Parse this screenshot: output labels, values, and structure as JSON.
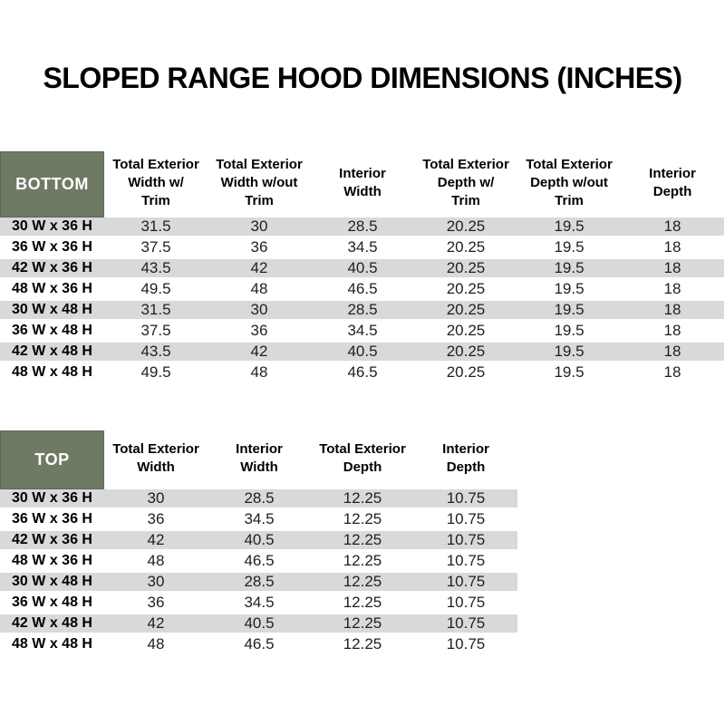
{
  "page_title": "SLOPED RANGE HOOD DIMENSIONS (INCHES)",
  "colors": {
    "header_green": "#6f7a64",
    "header_green_border": "#5d6852",
    "row_gray": "#d9d9d9",
    "row_white": "#ffffff",
    "text_black": "#000000",
    "text_dark": "#1f1f1f"
  },
  "bottom_table": {
    "corner_label": "BOTTOM",
    "columns": [
      "Total Exterior\nWidth w/\nTrim",
      "Total Exterior\nWidth w/out\nTrim",
      "Interior\nWidth",
      "Total Exterior\nDepth w/\nTrim",
      "Total Exterior\nDepth w/out\nTrim",
      "Interior\nDepth"
    ],
    "rows": [
      {
        "label": "30 W x 36 H",
        "values": [
          "31.5",
          "30",
          "28.5",
          "20.25",
          "19.5",
          "18"
        ]
      },
      {
        "label": "36 W x 36 H",
        "values": [
          "37.5",
          "36",
          "34.5",
          "20.25",
          "19.5",
          "18"
        ]
      },
      {
        "label": "42 W x 36 H",
        "values": [
          "43.5",
          "42",
          "40.5",
          "20.25",
          "19.5",
          "18"
        ]
      },
      {
        "label": "48 W x 36 H",
        "values": [
          "49.5",
          "48",
          "46.5",
          "20.25",
          "19.5",
          "18"
        ]
      },
      {
        "label": "30 W x 48 H",
        "values": [
          "31.5",
          "30",
          "28.5",
          "20.25",
          "19.5",
          "18"
        ]
      },
      {
        "label": "36 W x 48 H",
        "values": [
          "37.5",
          "36",
          "34.5",
          "20.25",
          "19.5",
          "18"
        ]
      },
      {
        "label": "42 W x 48 H",
        "values": [
          "43.5",
          "42",
          "40.5",
          "20.25",
          "19.5",
          "18"
        ]
      },
      {
        "label": "48 W x 48 H",
        "values": [
          "49.5",
          "48",
          "46.5",
          "20.25",
          "19.5",
          "18"
        ]
      }
    ]
  },
  "top_table": {
    "corner_label": "TOP",
    "columns": [
      "Total Exterior\nWidth",
      "Interior\nWidth",
      "Total Exterior\nDepth",
      "Interior\nDepth"
    ],
    "rows": [
      {
        "label": "30 W x 36 H",
        "values": [
          "30",
          "28.5",
          "12.25",
          "10.75"
        ]
      },
      {
        "label": "36 W x 36 H",
        "values": [
          "36",
          "34.5",
          "12.25",
          "10.75"
        ]
      },
      {
        "label": "42 W x 36 H",
        "values": [
          "42",
          "40.5",
          "12.25",
          "10.75"
        ]
      },
      {
        "label": "48 W x 36 H",
        "values": [
          "48",
          "46.5",
          "12.25",
          "10.75"
        ]
      },
      {
        "label": "30 W x 48 H",
        "values": [
          "30",
          "28.5",
          "12.25",
          "10.75"
        ]
      },
      {
        "label": "36 W x 48 H",
        "values": [
          "36",
          "34.5",
          "12.25",
          "10.75"
        ]
      },
      {
        "label": "42 W x 48 H",
        "values": [
          "42",
          "40.5",
          "12.25",
          "10.75"
        ]
      },
      {
        "label": "48 W x 48 H",
        "values": [
          "48",
          "46.5",
          "12.25",
          "10.75"
        ]
      }
    ]
  },
  "chart_data": {
    "type": "table",
    "title": "SLOPED RANGE HOOD DIMENSIONS (INCHES)"
  }
}
